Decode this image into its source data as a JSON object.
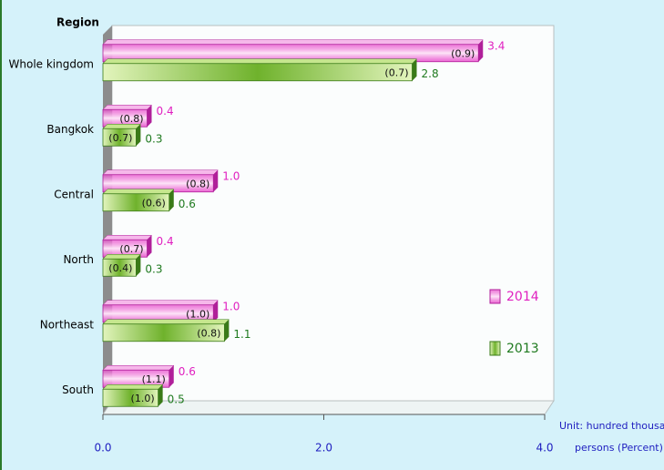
{
  "chart_data": {
    "type": "bar",
    "orientation": "horizontal",
    "y_label": "Region",
    "categories": [
      "Whole kingdom",
      "Bangkok",
      "Central",
      "North",
      "Northeast",
      "South"
    ],
    "series": [
      {
        "name": "2014",
        "color": "#e84ccc",
        "label_color": "#e020c0",
        "values": [
          3.4,
          0.4,
          1.0,
          0.4,
          1.0,
          0.6
        ],
        "value_labels": [
          "3.4",
          "0.4",
          "1.0",
          "0.4",
          "1.0",
          "0.6"
        ],
        "percent_labels": [
          "(0.9)",
          "(0.8)",
          "(0.8)",
          "(0.7)",
          "(1.0)",
          "(1.1)"
        ]
      },
      {
        "name": "2013",
        "color": "#6fb22c",
        "label_color": "#1f7a1f",
        "values": [
          2.8,
          0.3,
          0.6,
          0.3,
          1.1,
          0.5
        ],
        "value_labels": [
          "2.8",
          "0.3",
          "0.6",
          "0.3",
          "1.1",
          "0.5"
        ],
        "percent_labels": [
          "(0.7)",
          "(0.7)",
          "(0.6)",
          "(0.4)",
          "(0.8)",
          "(1.0)"
        ]
      }
    ],
    "xlim": [
      0,
      4
    ],
    "xticks": [
      {
        "value": 0,
        "label": "0.0"
      },
      {
        "value": 2,
        "label": "2.0"
      },
      {
        "value": 4,
        "label": "4.0"
      }
    ],
    "unit_note": [
      "Unit: hundred thousand",
      "persons (Percent)"
    ],
    "legend": "right"
  }
}
